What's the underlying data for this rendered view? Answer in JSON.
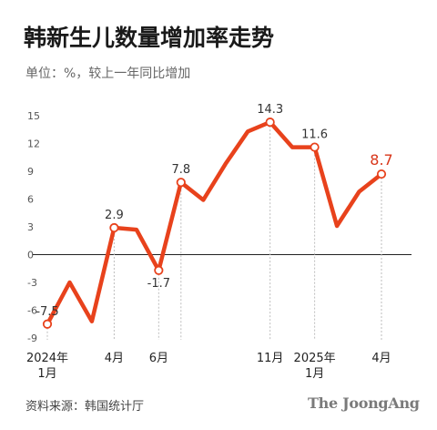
{
  "header": {
    "title": "韩新生儿数量增加率走势",
    "subtitle": "单位：%，较上一年同比增加"
  },
  "footer": {
    "source": "资料来源：韩国统计厅",
    "brand": "The JoongAng"
  },
  "colors": {
    "line": "#e8421c",
    "last_label": "#d8361a",
    "axis": "#222222",
    "guide": "#bdbdbd",
    "tick_text": "#555555"
  },
  "chart_data": {
    "type": "line",
    "title": "韩新生儿数量增加率走势",
    "subtitle": "单位：%，较上一年同比增加",
    "ylim": [
      -9,
      15
    ],
    "y_ticks": [
      15,
      12,
      9,
      6,
      3,
      0,
      -3,
      -6,
      -9
    ],
    "x": [
      "2024-01",
      "2024-02",
      "2024-03",
      "2024-04",
      "2024-05",
      "2024-06",
      "2024-07",
      "2024-08",
      "2024-09",
      "2024-10",
      "2024-11",
      "2024-12",
      "2025-01",
      "2025-02",
      "2025-03",
      "2025-04"
    ],
    "values": [
      -7.5,
      -3.0,
      -7.2,
      2.9,
      2.7,
      -1.7,
      7.8,
      5.9,
      9.8,
      13.3,
      14.3,
      11.6,
      11.6,
      3.1,
      6.8,
      8.7
    ],
    "x_tick_labels": [
      {
        "index": 0,
        "line1": "2024年",
        "line2": "1月"
      },
      {
        "index": 3,
        "line1": "4月",
        "line2": ""
      },
      {
        "index": 5,
        "line1": "6月",
        "line2": ""
      },
      {
        "index": 10,
        "line1": "11月",
        "line2": ""
      },
      {
        "index": 12,
        "line1": "2025年",
        "line2": "1月"
      },
      {
        "index": 15,
        "line1": "4月",
        "line2": ""
      }
    ],
    "annotations": [
      {
        "index": 0,
        "text": "-7.5",
        "pos": "above"
      },
      {
        "index": 3,
        "text": "2.9",
        "pos": "above"
      },
      {
        "index": 5,
        "text": "-1.7",
        "pos": "below"
      },
      {
        "index": 6,
        "text": "7.8",
        "pos": "above"
      },
      {
        "index": 10,
        "text": "14.3",
        "pos": "above"
      },
      {
        "index": 12,
        "text": "11.6",
        "pos": "above"
      },
      {
        "index": 15,
        "text": "8.7",
        "pos": "above",
        "highlight": true
      }
    ],
    "grid": false
  }
}
